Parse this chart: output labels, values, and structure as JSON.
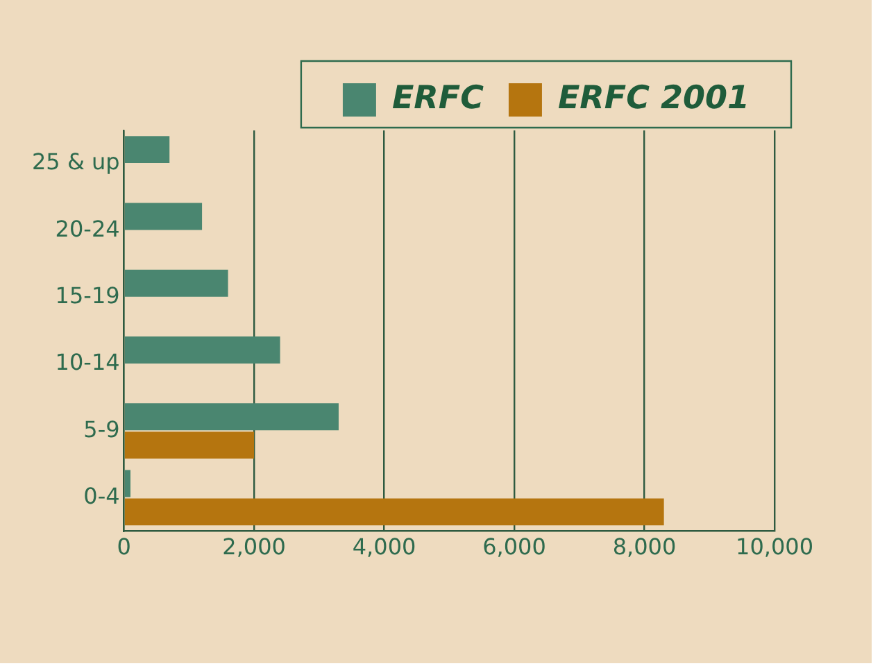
{
  "chart_data": {
    "type": "bar",
    "orientation": "horizontal",
    "categories": [
      "25 & up",
      "20-24",
      "15-19",
      "10-14",
      "5-9",
      "0-4"
    ],
    "series": [
      {
        "name": "ERFC",
        "color": "#4a8670",
        "values": [
          700,
          1200,
          1600,
          2400,
          3300,
          100
        ]
      },
      {
        "name": "ERFC 2001",
        "color": "#b5750f",
        "values": [
          null,
          null,
          null,
          null,
          2000,
          8300
        ]
      }
    ],
    "xlim": [
      0,
      10000
    ],
    "xticks": [
      0,
      {
        "value": 2000,
        "label": "2,000"
      },
      {
        "value": 4000,
        "label": "4,000"
      },
      {
        "value": 6000,
        "label": "6,000"
      },
      {
        "value": 8000,
        "label": "8,000"
      },
      {
        "value": 10000,
        "label": "10,000"
      }
    ],
    "grid": "x",
    "legend": "top right"
  }
}
